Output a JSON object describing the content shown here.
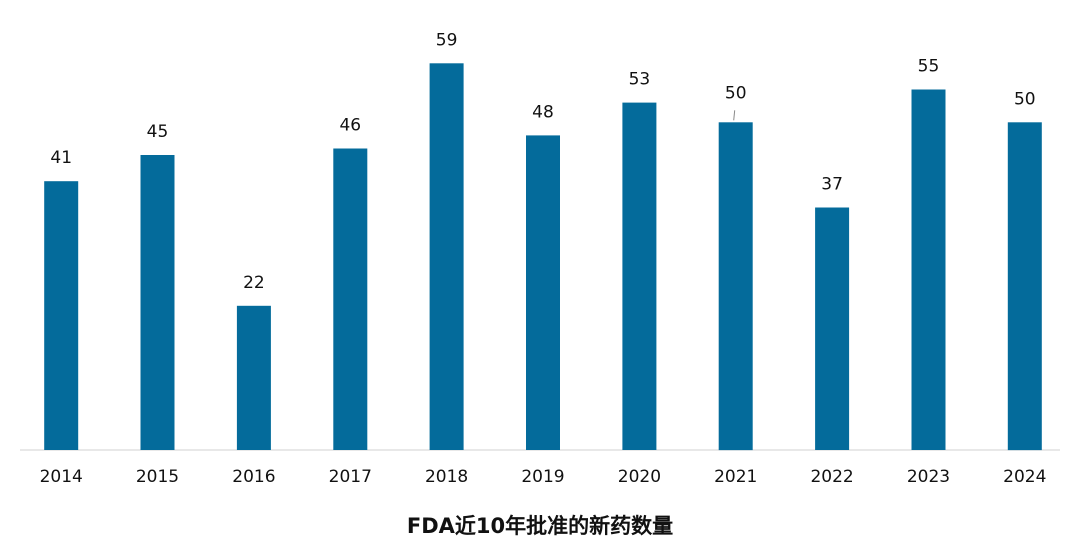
{
  "chart_data": {
    "type": "bar",
    "title": "FDA近10年批准的新药数量",
    "categories": [
      "2014",
      "2015",
      "2016",
      "2017",
      "2018",
      "2019",
      "2020",
      "2021",
      "2022",
      "2023",
      "2024"
    ],
    "values": [
      41,
      45,
      22,
      46,
      59,
      48,
      53,
      50,
      37,
      55,
      50
    ],
    "xlabel": "",
    "ylabel": "",
    "ylim": [
      0,
      60
    ],
    "grid": false,
    "legend": "none",
    "data_labels": true,
    "bar_color": "#046B9B"
  }
}
